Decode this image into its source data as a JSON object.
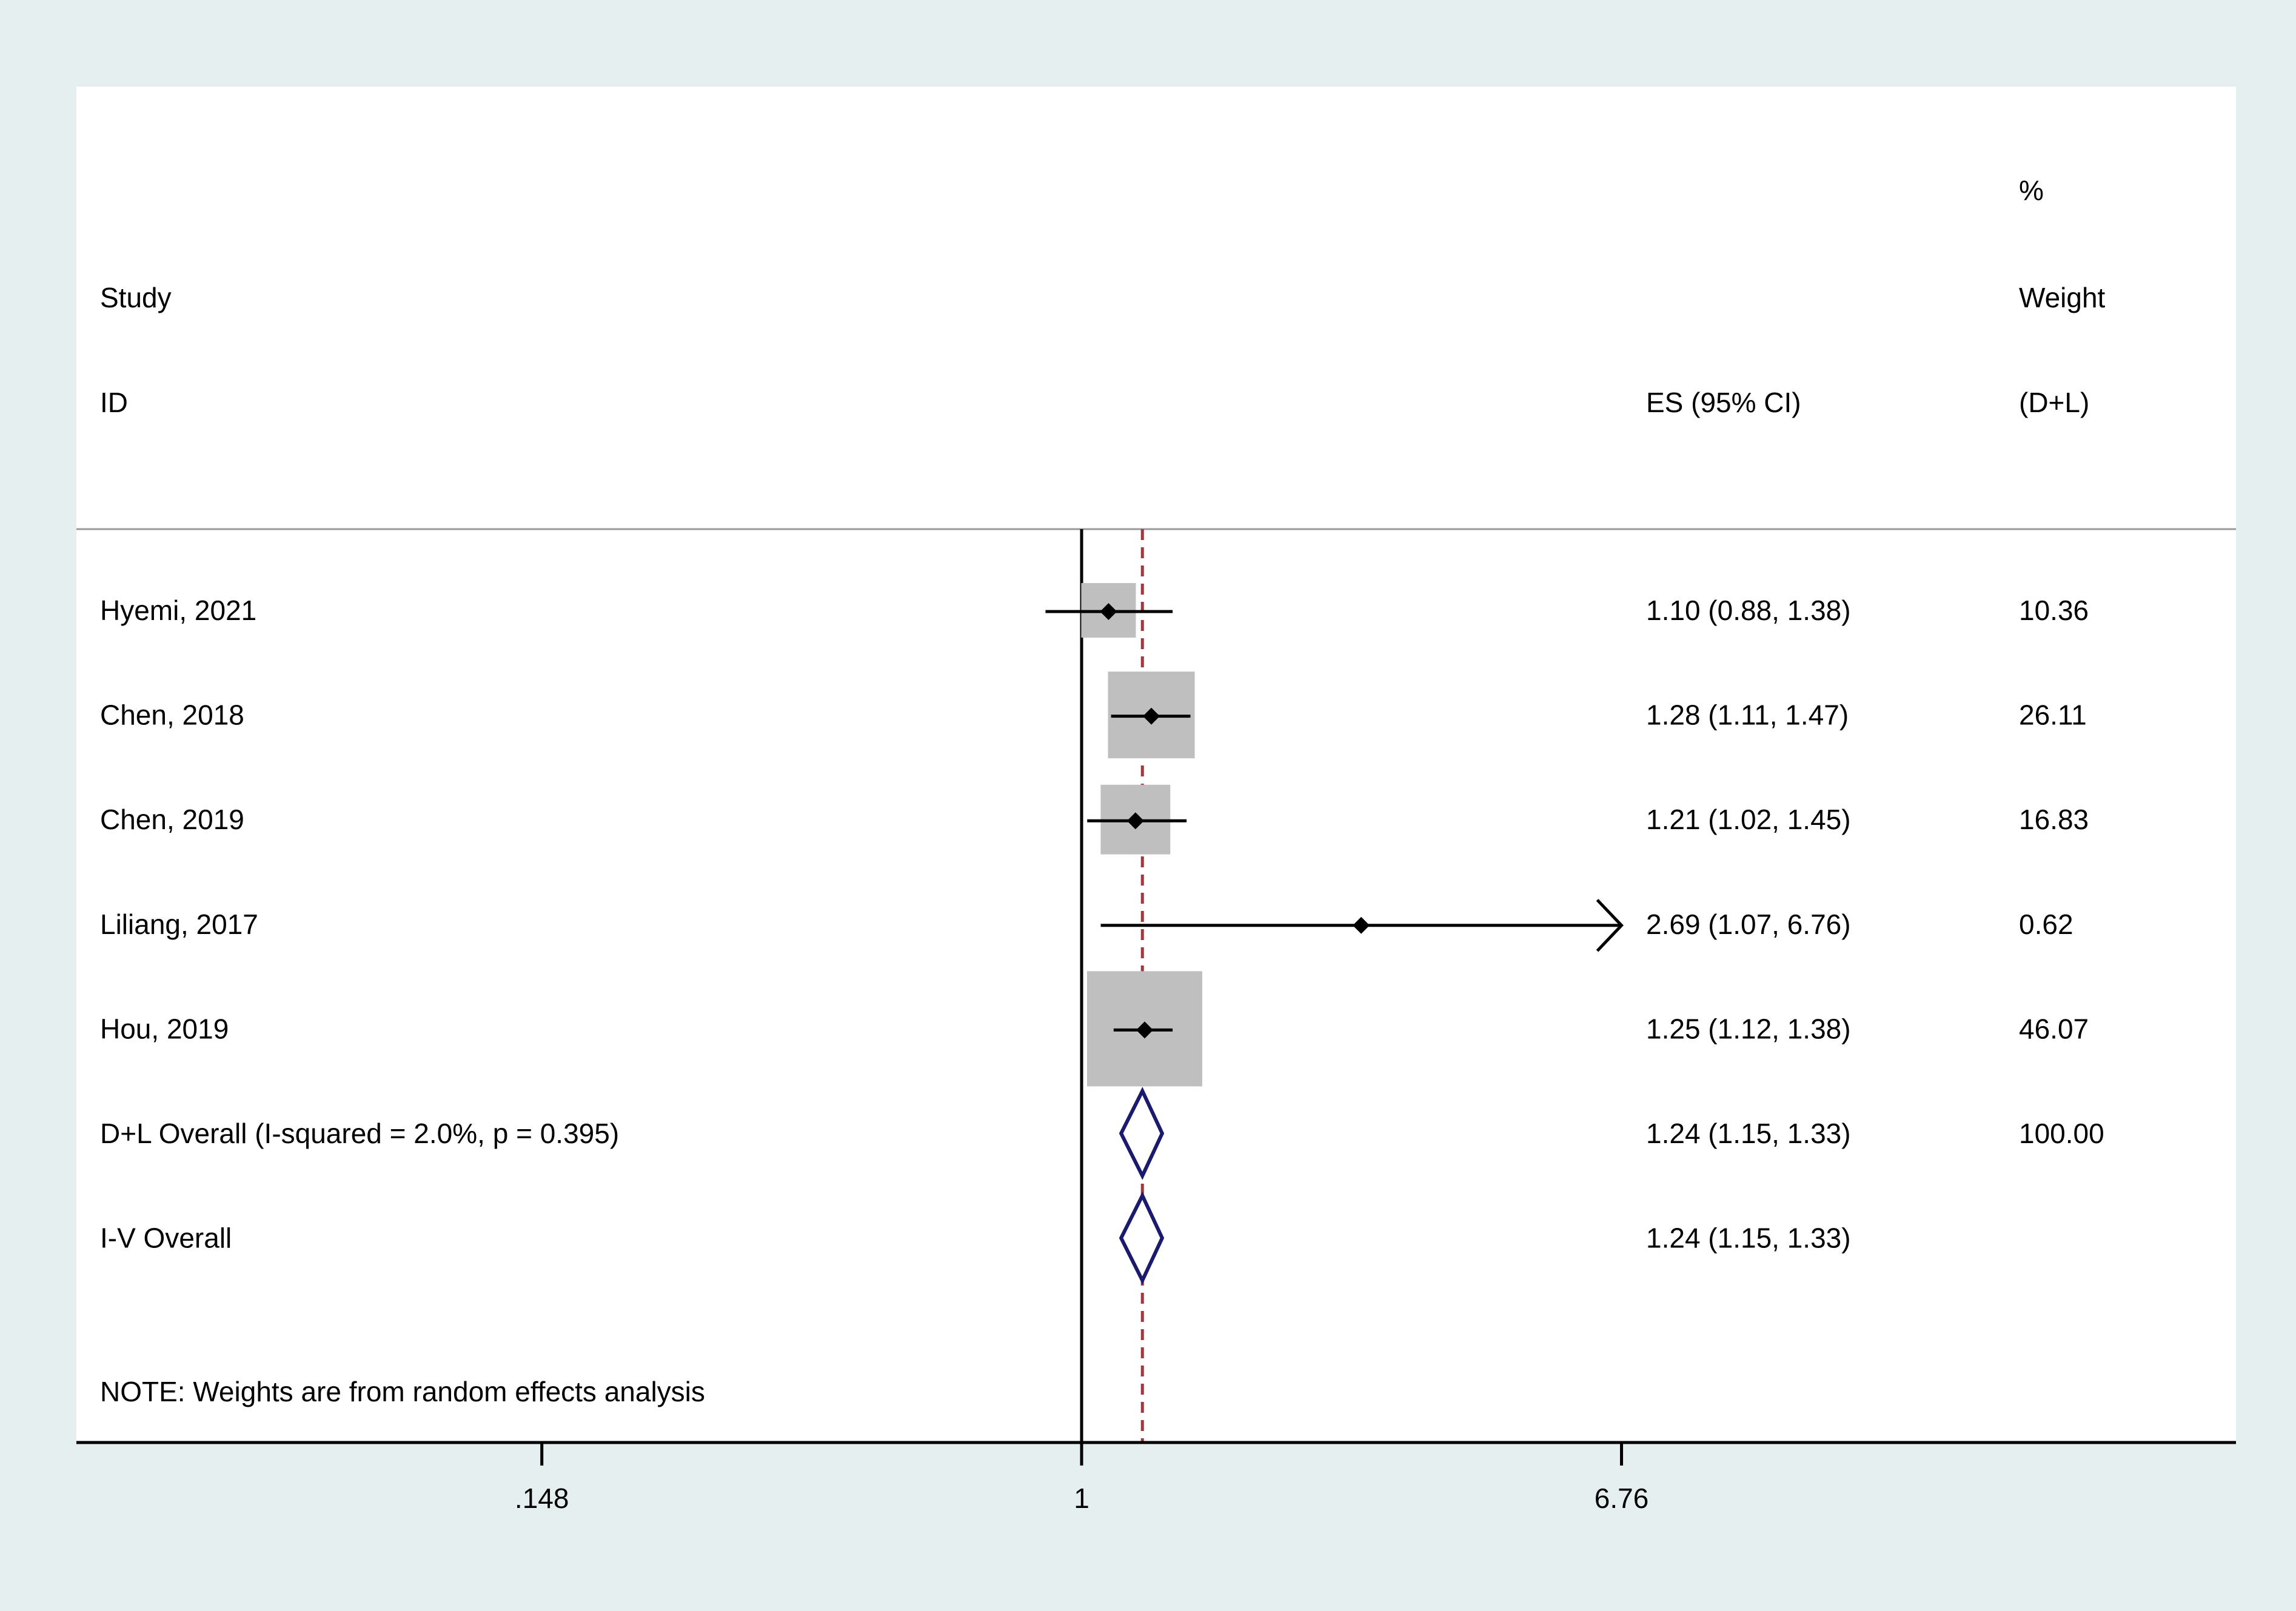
{
  "chart_data": {
    "type": "forest",
    "header": {
      "study_col": [
        "Study",
        "ID"
      ],
      "es_col": "ES (95% CI)",
      "weight_col": [
        "%",
        "Weight",
        "(D+L)"
      ]
    },
    "x_scale": "log",
    "x_ticks": [
      {
        "value": 0.148,
        "label": ".148"
      },
      {
        "value": 1,
        "label": "1"
      },
      {
        "value": 6.76,
        "label": "6.76"
      }
    ],
    "null_line": 1,
    "pooled_line": 1.24,
    "studies": [
      {
        "label": "Hyemi, 2021",
        "es": 1.1,
        "lo": 0.88,
        "hi": 1.38,
        "es_text": "1.10 (0.88, 1.38)",
        "weight": 10.36,
        "weight_text": "10.36"
      },
      {
        "label": "Chen, 2018",
        "es": 1.28,
        "lo": 1.11,
        "hi": 1.47,
        "es_text": "1.28 (1.11, 1.47)",
        "weight": 26.11,
        "weight_text": "26.11"
      },
      {
        "label": "Chen, 2019",
        "es": 1.21,
        "lo": 1.02,
        "hi": 1.45,
        "es_text": "1.21 (1.02, 1.45)",
        "weight": 16.83,
        "weight_text": "16.83"
      },
      {
        "label": "Liliang, 2017",
        "es": 2.69,
        "lo": 1.07,
        "hi": 6.76,
        "es_text": "2.69 (1.07, 6.76)",
        "weight": 0.62,
        "weight_text": "0.62",
        "arrow_right": true
      },
      {
        "label": "Hou, 2019",
        "es": 1.25,
        "lo": 1.12,
        "hi": 1.38,
        "es_text": "1.25 (1.12, 1.38)",
        "weight": 46.07,
        "weight_text": "46.07"
      }
    ],
    "overall": [
      {
        "label": "D+L Overall  (I-squared = 2.0%, p = 0.395)",
        "es": 1.24,
        "lo": 1.15,
        "hi": 1.33,
        "es_text": "1.24 (1.15, 1.33)",
        "weight_text": "100.00"
      },
      {
        "label": "I-V Overall",
        "es": 1.24,
        "lo": 1.15,
        "hi": 1.33,
        "es_text": "1.24 (1.15, 1.33)",
        "weight_text": ""
      }
    ],
    "note": "NOTE: Weights are from random effects analysis",
    "colors": {
      "page_bg": "#e6eff0",
      "panel_bg": "#ffffff",
      "box": "#bfbfbf",
      "point": "#000000",
      "pooled_line": "#a0393f",
      "diamond": "#1a1a6e",
      "divider": "#999999"
    }
  }
}
